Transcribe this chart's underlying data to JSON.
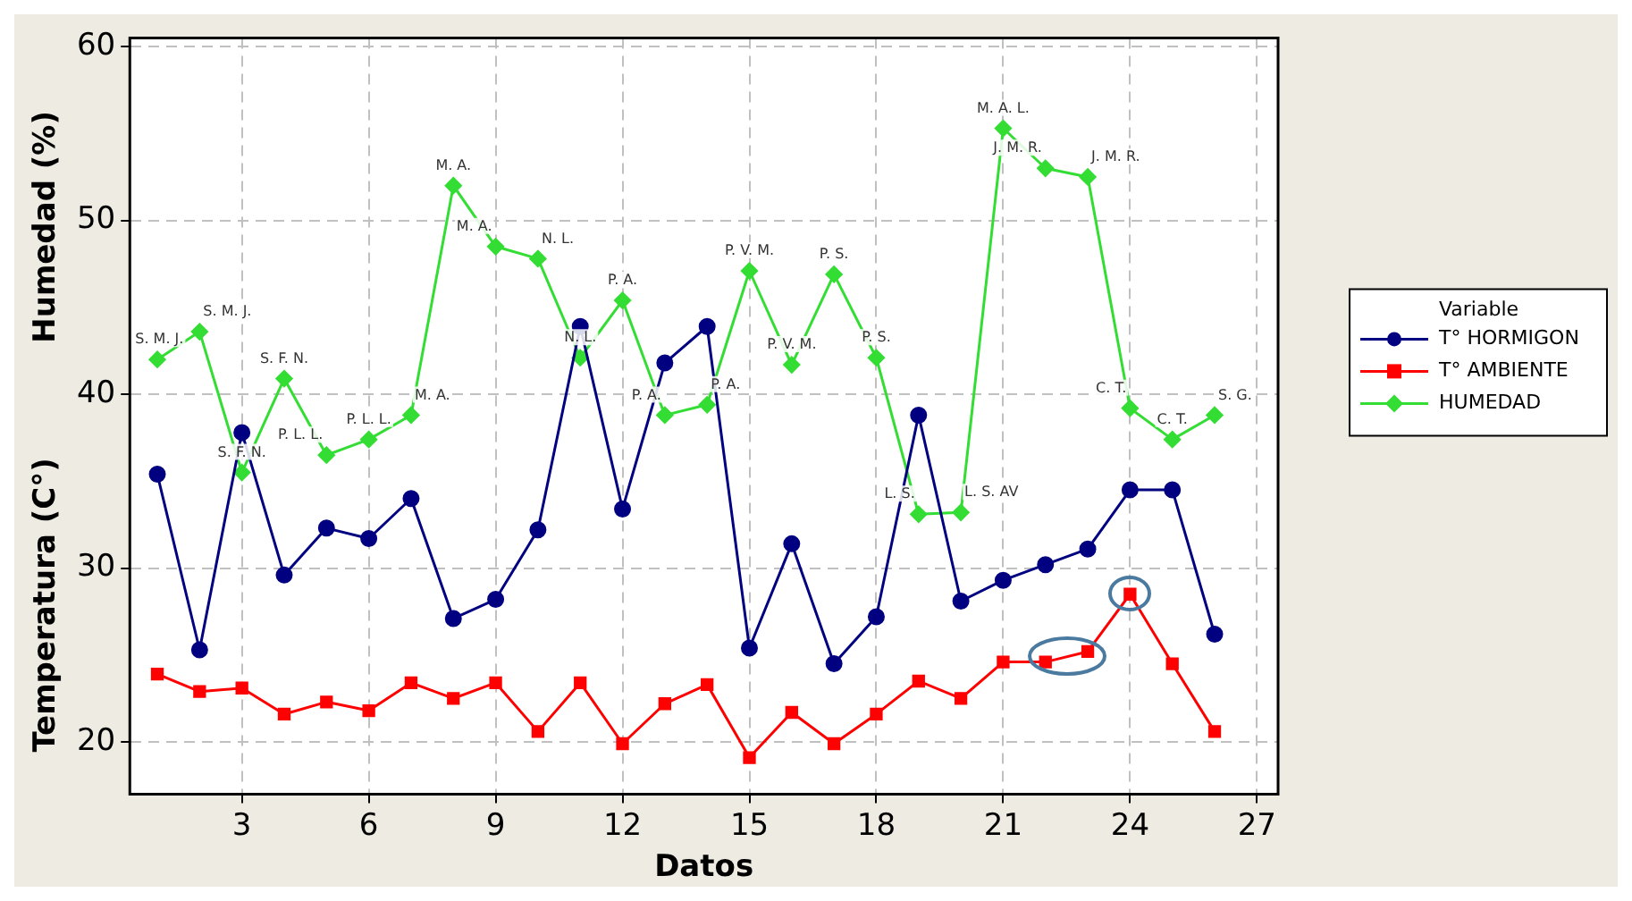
{
  "chart_data": {
    "type": "line",
    "xlabel": "Datos",
    "ylabel": [
      "Humedad (%)",
      "Temperatura (C°)"
    ],
    "legend_title": "Variable",
    "legend": "right",
    "grid": true,
    "line_style": "solid",
    "x": [
      1,
      2,
      3,
      4,
      5,
      6,
      7,
      8,
      9,
      10,
      11,
      12,
      13,
      14,
      15,
      16,
      17,
      18,
      19,
      20,
      21,
      22,
      23,
      24,
      25,
      26
    ],
    "xlim": [
      0.35,
      27.5
    ],
    "xticks": [
      3,
      6,
      9,
      12,
      15,
      18,
      21,
      24,
      27
    ],
    "ylim": [
      17,
      60.5
    ],
    "yticks": [
      20,
      30,
      40,
      50,
      60
    ],
    "series": [
      {
        "name": "T° HORMIGON",
        "color": "#000080",
        "marker": "circle",
        "values": [
          35.4,
          25.3,
          37.8,
          29.6,
          32.3,
          31.7,
          34.0,
          27.1,
          28.2,
          32.2,
          43.9,
          33.4,
          41.8,
          43.9,
          25.4,
          31.4,
          24.5,
          27.2,
          38.8,
          28.1,
          29.3,
          30.2,
          31.1,
          34.5,
          34.5,
          26.2
        ]
      },
      {
        "name": "T° AMBIENTE",
        "color": "#ff0000",
        "marker": "square",
        "values": [
          23.9,
          22.9,
          23.1,
          21.6,
          22.3,
          21.8,
          23.4,
          22.5,
          23.4,
          20.6,
          23.4,
          19.9,
          22.2,
          23.3,
          19.1,
          21.7,
          19.9,
          21.6,
          23.5,
          22.5,
          24.6,
          24.6,
          25.2,
          28.5,
          24.5,
          20.6
        ]
      },
      {
        "name": "HUMEDAD",
        "color": "#33dd33",
        "marker": "diamond",
        "values": [
          42.0,
          43.6,
          35.5,
          40.9,
          36.5,
          37.4,
          38.8,
          52.0,
          48.5,
          47.8,
          42.1,
          45.4,
          38.8,
          39.4,
          47.1,
          41.7,
          46.9,
          42.1,
          33.1,
          33.2,
          55.3,
          53.0,
          52.5,
          39.2,
          37.4,
          38.8
        ]
      }
    ],
    "annotations": [
      {
        "text": "S. M. J.",
        "x": 1,
        "y": 42.0
      },
      {
        "text": "S. M. J.",
        "x": 2,
        "y": 43.6
      },
      {
        "text": "S. F. N.",
        "x": 3,
        "y": 35.5
      },
      {
        "text": "S. F. N.",
        "x": 4,
        "y": 40.9
      },
      {
        "text": "P. L. L.",
        "x": 5,
        "y": 36.5
      },
      {
        "text": "P. L. L.",
        "x": 6,
        "y": 37.4
      },
      {
        "text": "M. A.",
        "x": 7,
        "y": 38.8
      },
      {
        "text": "M. A.",
        "x": 8,
        "y": 52.0
      },
      {
        "text": "M. A.",
        "x": 9,
        "y": 48.5
      },
      {
        "text": "N. L.",
        "x": 10,
        "y": 47.8
      },
      {
        "text": "N. L.",
        "x": 11,
        "y": 42.1
      },
      {
        "text": "P. A.",
        "x": 12,
        "y": 45.4
      },
      {
        "text": "P. A.",
        "x": 13,
        "y": 38.8
      },
      {
        "text": "P. A.",
        "x": 14,
        "y": 39.4
      },
      {
        "text": "P. V. M.",
        "x": 15,
        "y": 47.1
      },
      {
        "text": "P. V. M.",
        "x": 16,
        "y": 41.7
      },
      {
        "text": "P. S.",
        "x": 17,
        "y": 46.9
      },
      {
        "text": "P. S.",
        "x": 18,
        "y": 42.1
      },
      {
        "text": "L. S.",
        "x": 19,
        "y": 33.1
      },
      {
        "text": "L. S. AV",
        "x": 20,
        "y": 33.2
      },
      {
        "text": "M. A. L.",
        "x": 21,
        "y": 55.3
      },
      {
        "text": "J. M. R.",
        "x": 22,
        "y": 53.0
      },
      {
        "text": "J. M. R.",
        "x": 23,
        "y": 52.5
      },
      {
        "text": "C. T.",
        "x": 24,
        "y": 39.2
      },
      {
        "text": "C. T.",
        "x": 25,
        "y": 37.4
      },
      {
        "text": "S. G.",
        "x": 26,
        "y": 38.8
      }
    ]
  }
}
